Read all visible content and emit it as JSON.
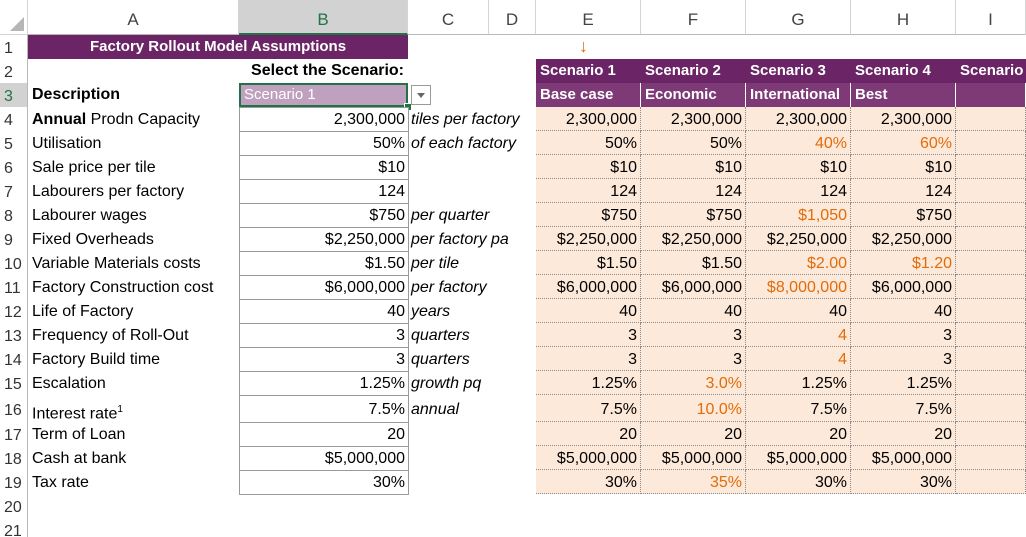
{
  "columns": [
    "A",
    "B",
    "C",
    "D",
    "E",
    "F",
    "G",
    "H",
    "I"
  ],
  "rows": [
    "1",
    "2",
    "3",
    "4",
    "5",
    "6",
    "7",
    "8",
    "9",
    "10",
    "11",
    "12",
    "13",
    "14",
    "15",
    "16",
    "17",
    "18",
    "19",
    "20",
    "21"
  ],
  "title": "Factory Rollout Model Assumptions",
  "select_label": "Select the Scenario:",
  "description_header": "Description",
  "selected_scenario": "Scenario 1",
  "dropdown_icon": "chevron-down-icon",
  "arrow_icon": "down-arrow-icon",
  "colors": {
    "header_purple": "#6b2465",
    "scenario_fill": "#fde9d9",
    "highlight_orange": "#e26b0a",
    "selection_green": "#217346"
  },
  "items": [
    {
      "label_bold": "Annual",
      "label": " Prodn Capacity",
      "value": "2,300,000",
      "unit": "tiles per factory"
    },
    {
      "label": "Utilisation",
      "value": "50%",
      "unit": "of each factory"
    },
    {
      "label": "Sale price per tile",
      "value": "$10",
      "unit": ""
    },
    {
      "label": "Labourers per factory",
      "value": "124",
      "unit": ""
    },
    {
      "label": "Labourer wages",
      "value": "$750",
      "unit": "per quarter"
    },
    {
      "label": "Fixed Overheads",
      "value": "$2,250,000",
      "unit": "per factory pa"
    },
    {
      "label": "Variable Materials costs",
      "value": "$1.50",
      "unit": "per tile"
    },
    {
      "label": "Factory Construction cost",
      "value": "$6,000,000",
      "unit": "per factory"
    },
    {
      "label": "Life of Factory",
      "value": "40",
      "unit": "years"
    },
    {
      "label": "Frequency of Roll-Out",
      "value": "3",
      "unit": "quarters"
    },
    {
      "label": "Factory Build time",
      "value": "3",
      "unit": "quarters"
    },
    {
      "label": "Escalation",
      "value": "1.25%",
      "unit": "growth pq"
    },
    {
      "label": "Interest rate",
      "sup": "1",
      "value": "7.5%",
      "unit": "annual"
    },
    {
      "label": "Term of Loan",
      "value": "20",
      "unit": ""
    },
    {
      "label": "Cash at bank",
      "value": "$5,000,000",
      "unit": ""
    },
    {
      "label": "Tax rate",
      "value": "30%",
      "unit": ""
    }
  ],
  "scenarios": [
    {
      "name": "Scenario 1",
      "label": "Base case",
      "values": [
        "2,300,000",
        "50%",
        "$10",
        "124",
        "$750",
        "$2,250,000",
        "$1.50",
        "$6,000,000",
        "40",
        "3",
        "3",
        "1.25%",
        "7.5%",
        "20",
        "$5,000,000",
        "30%"
      ],
      "highlight": []
    },
    {
      "name": "Scenario 2",
      "label": "Economic",
      "values": [
        "2,300,000",
        "50%",
        "$10",
        "124",
        "$750",
        "$2,250,000",
        "$1.50",
        "$6,000,000",
        "40",
        "3",
        "3",
        "3.0%",
        "10.0%",
        "20",
        "$5,000,000",
        "35%"
      ],
      "highlight": [
        11,
        12,
        15
      ]
    },
    {
      "name": "Scenario 3",
      "label": "International",
      "values": [
        "2,300,000",
        "40%",
        "$10",
        "124",
        "$1,050",
        "$2,250,000",
        "$2.00",
        "$8,000,000",
        "40",
        "4",
        "4",
        "1.25%",
        "7.5%",
        "20",
        "$5,000,000",
        "30%"
      ],
      "highlight": [
        1,
        4,
        6,
        7,
        9,
        10
      ]
    },
    {
      "name": "Scenario 4",
      "label": "Best",
      "values": [
        "2,300,000",
        "60%",
        "$10",
        "124",
        "$750",
        "$2,250,000",
        "$1.20",
        "$6,000,000",
        "40",
        "3",
        "3",
        "1.25%",
        "7.5%",
        "20",
        "$5,000,000",
        "30%"
      ],
      "highlight": [
        1,
        6
      ]
    },
    {
      "name": "Scenario",
      "label": "",
      "values": [],
      "highlight": []
    }
  ]
}
